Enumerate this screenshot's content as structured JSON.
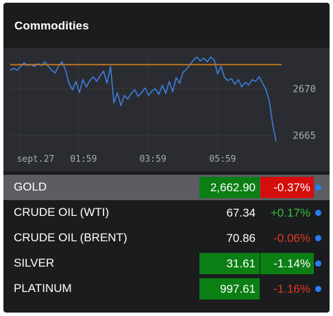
{
  "widget": {
    "title": "Commodities"
  },
  "chart_data": {
    "type": "line",
    "x_ticks": [
      "sept.27",
      "01:59",
      "03:59",
      "05:59"
    ],
    "y_ticks": [
      2670,
      2665
    ],
    "ylim": [
      2663.5,
      2673.8
    ],
    "reference_line": 2672.6,
    "series": [
      {
        "x": [
          0.0,
          0.013,
          0.026,
          0.039,
          0.052,
          0.065,
          0.078,
          0.091,
          0.104,
          0.117,
          0.13,
          0.143,
          0.156,
          0.169,
          0.182,
          0.195,
          0.208,
          0.221,
          0.234,
          0.247,
          0.26,
          0.273,
          0.286,
          0.299,
          0.312,
          0.325,
          0.338,
          0.351,
          0.364,
          0.377,
          0.39,
          0.403,
          0.416,
          0.429,
          0.442,
          0.455,
          0.468,
          0.481,
          0.494,
          0.507,
          0.52,
          0.533,
          0.546,
          0.559,
          0.572,
          0.585,
          0.598,
          0.611,
          0.624,
          0.637,
          0.65,
          0.663,
          0.676,
          0.689,
          0.702,
          0.715,
          0.728,
          0.741,
          0.754,
          0.767,
          0.78,
          0.793,
          0.806,
          0.819,
          0.832,
          0.845,
          0.858,
          0.871,
          0.884,
          0.897,
          0.91,
          0.923,
          0.936,
          0.949,
          0.962,
          0.975,
          0.988,
          1.0
        ],
        "values": [
          2672.0,
          2672.2,
          2672.0,
          2672.4,
          2672.8,
          2672.5,
          2672.6,
          2672.4,
          2672.7,
          2672.5,
          2672.9,
          2672.4,
          2672.0,
          2671.7,
          2672.5,
          2672.9,
          2672.0,
          2670.6,
          2669.9,
          2670.8,
          2669.6,
          2671.0,
          2670.2,
          2670.9,
          2671.3,
          2670.8,
          2671.4,
          2671.9,
          2670.6,
          2672.4,
          2668.5,
          2669.6,
          2668.2,
          2669.3,
          2668.9,
          2669.5,
          2669.9,
          2669.2,
          2669.6,
          2670.1,
          2669.3,
          2669.8,
          2670.0,
          2669.4,
          2670.4,
          2669.5,
          2670.8,
          2669.7,
          2671.2,
          2670.6,
          2671.8,
          2672.1,
          2672.6,
          2673.1,
          2673.4,
          2673.0,
          2673.3,
          2672.9,
          2673.4,
          2673.1,
          2671.6,
          2672.4,
          2671.2,
          2670.9,
          2671.1,
          2670.5,
          2671.0,
          2670.2,
          2670.7,
          2670.4,
          2671.0,
          2670.8,
          2671.3,
          2670.6,
          2669.9,
          2668.6,
          2666.0,
          2664.4
        ]
      }
    ]
  },
  "rows": [
    {
      "name": "GOLD",
      "price": "2,662.90",
      "change": "-0.37%",
      "active": true,
      "price_style": "up",
      "change_style": "hl-neg"
    },
    {
      "name": "CRUDE OIL (WTI)",
      "price": "67.34",
      "change": "+0.17%",
      "active": false,
      "price_style": "",
      "change_style": "pos"
    },
    {
      "name": "CRUDE OIL (BRENT)",
      "price": "70.86",
      "change": "-0.06%",
      "active": false,
      "price_style": "",
      "change_style": "neg"
    },
    {
      "name": "SILVER",
      "price": "31.61",
      "change": "-1.14%",
      "active": false,
      "price_style": "up",
      "change_style": "hl-gray"
    },
    {
      "name": "PLATINUM",
      "price": "997.61",
      "change": "-1.16%",
      "active": false,
      "price_style": "up",
      "change_style": "neg"
    }
  ],
  "colors": {
    "line": "#3d7fe0",
    "reference": "#c7791f",
    "up_bg": "#0b7f14",
    "down_bg": "#d40d0d",
    "positive_text": "#34c13d",
    "negative_text": "#e2391f",
    "dot": "#2c7cf3"
  }
}
